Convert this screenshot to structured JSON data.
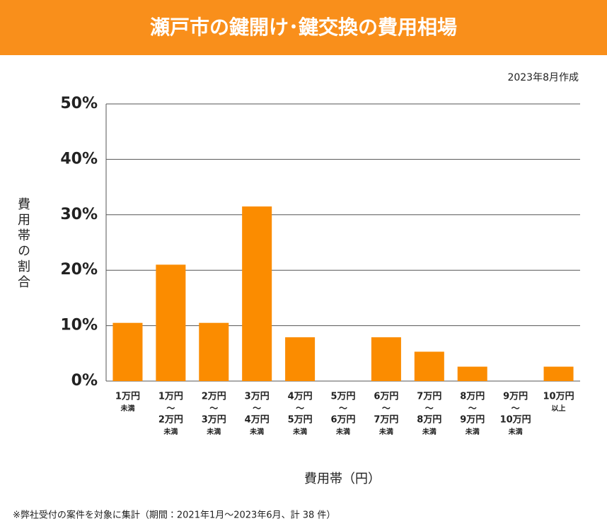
{
  "chart_data": {
    "type": "bar",
    "title": "瀬戸市の鍵開け･鍵交換の費用相場",
    "subtitle": "2023年8月作成",
    "y_label": "費用帯の割合",
    "x_label": "費用帯（円）",
    "footnote": "※弊社受付の案件を対象に集計（期間：2021年1月～2023年6月、計 38 件）",
    "categories": [
      [
        "1万円",
        "未満"
      ],
      [
        "1万円",
        "〜",
        "2万円",
        "未満"
      ],
      [
        "2万円",
        "〜",
        "3万円",
        "未満"
      ],
      [
        "3万円",
        "〜",
        "4万円",
        "未満"
      ],
      [
        "4万円",
        "〜",
        "5万円",
        "未満"
      ],
      [
        "5万円",
        "〜",
        "6万円",
        "未満"
      ],
      [
        "6万円",
        "〜",
        "7万円",
        "未満"
      ],
      [
        "7万円",
        "〜",
        "8万円",
        "未満"
      ],
      [
        "8万円",
        "〜",
        "9万円",
        "未満"
      ],
      [
        "9万円",
        "〜",
        "10万円",
        "未満"
      ],
      [
        "10万円",
        "以上"
      ]
    ],
    "values": [
      10.5,
      21,
      10.5,
      31.5,
      7.9,
      0,
      7.9,
      5.3,
      2.6,
      0,
      2.6
    ],
    "color": "#fb8c00",
    "ylim": [
      0,
      50
    ],
    "yticks": [
      {
        "value": 0,
        "label": "0%"
      },
      {
        "value": 10,
        "label": "10%"
      },
      {
        "value": 20,
        "label": "20%"
      },
      {
        "value": 30,
        "label": "30%"
      },
      {
        "value": 40,
        "label": "40%"
      },
      {
        "value": 50,
        "label": "50%"
      }
    ],
    "grid": true
  }
}
